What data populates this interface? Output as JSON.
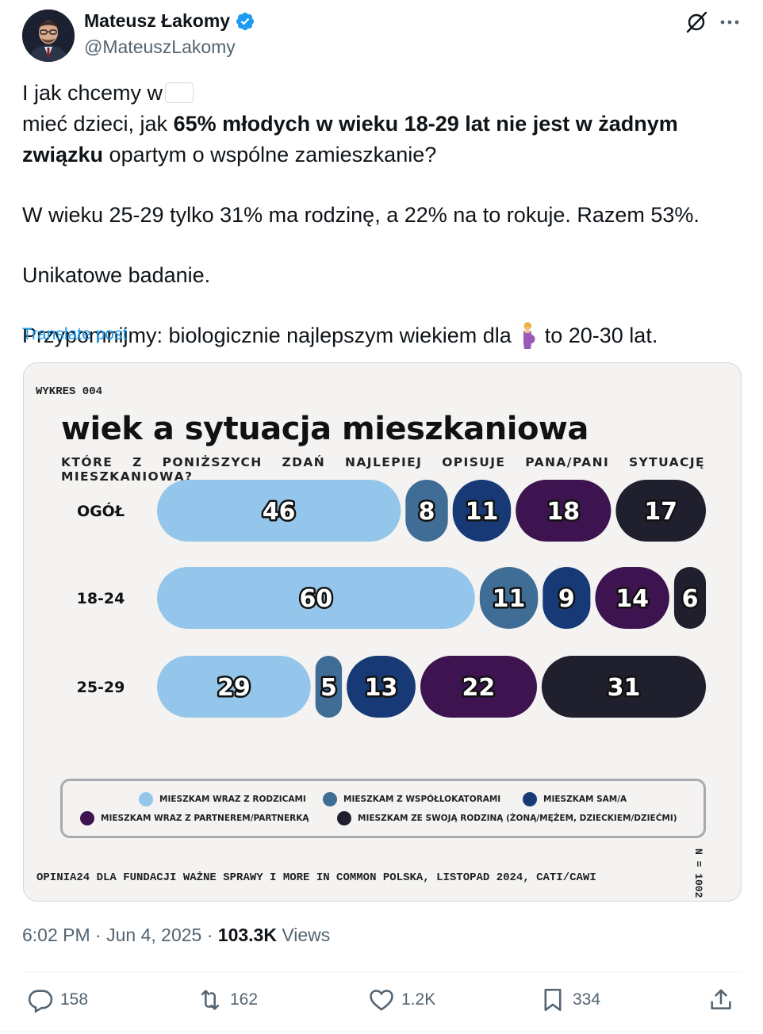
{
  "author": {
    "display_name": "Mateusz Łakomy",
    "handle": "@MateuszLakomy",
    "verified": true
  },
  "post": {
    "line1_a": "I jak chcemy w",
    "line1_b": "mieć dzieci, jak",
    "line1_bold": "65% młodych w wieku 18-29 lat nie jest w żadnym związku",
    "line1_c": "opartym o wspólne zamieszkanie?",
    "para2": "W wieku 25-29 tylko 31% ma rodzinę, a 22% na to rokuje. Razem 53%.",
    "para3": "Unikatowe badanie.",
    "para4_a": "Przypomnijmy: biologicznie najlepszym wiekiem dla",
    "para4_b": "to 20-30 lat.",
    "translate_label": "Translate post"
  },
  "media": {
    "wykres_label": "WYKRES 004",
    "title": "wiek a sytuacja mieszkaniowa",
    "subtitle": "KTÓRE Z PONIŻSZYCH ZDAŃ NAJLEPIEJ OPISUJE PANA/PANI SYTUACJĘ MIESZKANIOWĄ?",
    "legend": [
      {
        "label": "MIESZKAM WRAZ Z RODZICAMI",
        "color": "#93c6ea"
      },
      {
        "label": "MIESZKAM Z WSPÓŁLOKATORAMI",
        "color": "#3f6d96"
      },
      {
        "label": "MIESZKAM SAM/A",
        "color": "#173a77"
      },
      {
        "label": "MIESZKAM WRAZ Z PARTNEREM/PARTNERKĄ",
        "color": "#3d1450"
      },
      {
        "label": "MIESZKAM ZE SWOJĄ RODZINĄ (ŻONĄ/MĘŻEM, DZIECKIEM/DZIEĆMI)",
        "color": "#1f1f2e"
      }
    ],
    "source": "OPINIA24 DLA FUNDACJI WAŻNE SPRAWY I MORE IN COMMON POLSKA, LISTOPAD 2024, CATI/CAWI",
    "n_label": "N = 1002"
  },
  "chart_data": {
    "type": "bar",
    "stacked": true,
    "orientation": "horizontal",
    "title": "wiek a sytuacja mieszkaniowa",
    "subtitle": "KTÓRE Z PONIŻSZYCH ZDAŃ NAJLEPIEJ OPISUJE PANA/PANI SYTUACJĘ MIESZKANIOWĄ?",
    "categories": [
      "OGÓŁ",
      "18-24",
      "25-29"
    ],
    "series": [
      {
        "name": "MIESZKAM WRAZ Z RODZICAMI",
        "values": [
          46,
          60,
          29
        ],
        "color": "#93c6ea"
      },
      {
        "name": "MIESZKAM Z WSPÓŁLOKATORAMI",
        "values": [
          8,
          11,
          5
        ],
        "color": "#3f6d96"
      },
      {
        "name": "MIESZKAM SAM/A",
        "values": [
          11,
          9,
          13
        ],
        "color": "#173a77"
      },
      {
        "name": "MIESZKAM WRAZ Z PARTNEREM/PARTNERKĄ",
        "values": [
          18,
          14,
          22
        ],
        "color": "#3d1450"
      },
      {
        "name": "MIESZKAM ZE SWOJĄ RODZINĄ (ŻONĄ/MĘŻEM, DZIECKIEM/DZIEĆMI)",
        "values": [
          17,
          6,
          31
        ],
        "color": "#1f1f2e"
      }
    ],
    "legend_position": "bottom",
    "grid": false
  },
  "meta": {
    "time": "6:02 PM",
    "separator": "·",
    "date": "Jun 4, 2025",
    "views_count": "103.3K",
    "views_label": "Views"
  },
  "actions": {
    "replies": "158",
    "reposts": "162",
    "likes": "1.2K",
    "bookmarks": "334"
  },
  "colors": {
    "link": "#1d9bf0",
    "secondary_text": "#536471",
    "verified": "#1d9bf0"
  }
}
